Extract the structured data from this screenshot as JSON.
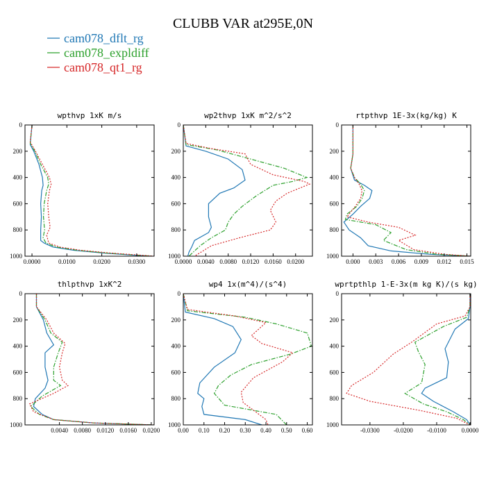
{
  "figure_title": "CLUBB VAR at295E,0N",
  "legend": [
    {
      "label": "cam078_dflt_rg",
      "color": "#1f77b4",
      "dash": "solid"
    },
    {
      "label": "cam078_expldiff",
      "color": "#2ca02c",
      "dash": "dashdot"
    },
    {
      "label": "cam078_qt1_rg",
      "color": "#d62728",
      "dash": "dotted"
    }
  ],
  "chart_data": [
    {
      "type": "line",
      "title": "wpthvp   1xK m/s",
      "xlim": [
        -0.002,
        0.035
      ],
      "ylim": [
        1000,
        0
      ],
      "xticks": [
        0,
        0.01,
        0.02,
        0.03
      ],
      "xticklabels": [
        "0.0000",
        "0.0100",
        "0.0200",
        "0.0300"
      ],
      "yticks": [
        0,
        200,
        400,
        600,
        800,
        1000
      ],
      "yticklabels": [
        "0",
        "200",
        "400",
        "600",
        "800",
        "1000"
      ],
      "series": [
        {
          "name": "cam078_dflt_rg",
          "x": [
            0.0,
            -0.0005,
            0.0005,
            0.002,
            0.003,
            0.0032,
            0.0028,
            0.0025,
            0.0027,
            0.0025,
            0.0025,
            0.0035,
            0.006,
            0.012,
            0.02,
            0.028,
            0.034
          ],
          "y": [
            0,
            150,
            200,
            300,
            400,
            460,
            500,
            600,
            700,
            800,
            880,
            900,
            930,
            955,
            975,
            990,
            1000
          ]
        },
        {
          "name": "cam078_expldiff",
          "x": [
            0.0,
            -0.0005,
            0.0008,
            0.0025,
            0.0045,
            0.0048,
            0.0042,
            0.0035,
            0.0033,
            0.0036,
            0.0032,
            0.004,
            0.007,
            0.013,
            0.021,
            0.029,
            0.0345
          ],
          "y": [
            0,
            140,
            200,
            300,
            400,
            450,
            500,
            600,
            700,
            800,
            860,
            900,
            930,
            955,
            975,
            990,
            1000
          ]
        },
        {
          "name": "cam078_qt1_rg",
          "x": [
            0.0,
            -0.0005,
            0.001,
            0.003,
            0.005,
            0.0055,
            0.005,
            0.0045,
            0.0048,
            0.0052,
            0.0042,
            0.0048,
            0.008,
            0.014,
            0.022,
            0.03,
            0.035
          ],
          "y": [
            0,
            130,
            200,
            300,
            400,
            450,
            500,
            600,
            700,
            780,
            840,
            900,
            930,
            955,
            975,
            990,
            1000
          ]
        }
      ]
    },
    {
      "type": "line",
      "title": "wp2thvp   1xK m^2/s^2",
      "xlim": [
        0,
        0.023
      ],
      "ylim": [
        1000,
        0
      ],
      "xticks": [
        0,
        0.004,
        0.008,
        0.012,
        0.016,
        0.02
      ],
      "xticklabels": [
        "0.0000",
        "0.0040",
        "0.0080",
        "0.0120",
        "0.0160",
        "0.0200"
      ],
      "yticks": [
        0,
        200,
        400,
        600,
        800,
        1000
      ],
      "yticklabels": [
        "0",
        "200",
        "400",
        "600",
        "800",
        "1000"
      ],
      "series": [
        {
          "name": "cam078_dflt_rg",
          "x": [
            0.0,
            0.0005,
            0.004,
            0.008,
            0.0105,
            0.011,
            0.009,
            0.0065,
            0.0045,
            0.0045,
            0.005,
            0.0045,
            0.002,
            0.0015,
            0.001,
            0.0008
          ],
          "y": [
            0,
            160,
            200,
            260,
            340,
            420,
            480,
            520,
            600,
            700,
            780,
            820,
            880,
            930,
            970,
            1000
          ]
        },
        {
          "name": "cam078_expldiff",
          "x": [
            0.0,
            0.0005,
            0.006,
            0.012,
            0.018,
            0.022,
            0.0195,
            0.016,
            0.013,
            0.0105,
            0.009,
            0.008,
            0.0075,
            0.005,
            0.003,
            0.001
          ],
          "y": [
            0,
            150,
            190,
            260,
            330,
            400,
            430,
            460,
            540,
            620,
            680,
            740,
            800,
            860,
            920,
            1000
          ]
        },
        {
          "name": "cam078_qt1_rg",
          "x": [
            0.0,
            0.0005,
            0.005,
            0.011,
            0.012,
            0.016,
            0.0215,
            0.0225,
            0.0185,
            0.0165,
            0.0155,
            0.0165,
            0.0155,
            0.01,
            0.005,
            0.002
          ],
          "y": [
            0,
            140,
            180,
            220,
            300,
            380,
            430,
            450,
            520,
            580,
            650,
            740,
            800,
            860,
            920,
            1000
          ]
        }
      ]
    },
    {
      "type": "line",
      "title": "rtpthvp   1E-3x(kg/kg) K",
      "xlim": [
        -0.0015,
        0.0155
      ],
      "ylim": [
        1000,
        0
      ],
      "xticks": [
        0,
        0.003,
        0.006,
        0.009,
        0.012,
        0.015
      ],
      "xticklabels": [
        "0.000",
        "0.003",
        "0.006",
        "0.009",
        "0.012",
        "0.015"
      ],
      "yticks": [
        0,
        200,
        400,
        600,
        800,
        1000
      ],
      "yticklabels": [
        "0",
        "200",
        "400",
        "600",
        "800",
        "1000"
      ],
      "series": [
        {
          "name": "cam078_dflt_rg",
          "x": [
            0.0,
            0.0,
            -0.0003,
            0.0002,
            0.0015,
            0.0025,
            0.0022,
            0.001,
            0.0,
            -0.0012,
            -0.0005,
            0.001,
            0.002,
            0.005,
            0.01,
            0.0155
          ],
          "y": [
            0,
            220,
            330,
            420,
            460,
            500,
            560,
            620,
            680,
            740,
            800,
            860,
            920,
            960,
            985,
            1000
          ]
        },
        {
          "name": "cam078_expldiff",
          "x": [
            0.0,
            0.0,
            -0.0003,
            0.0002,
            0.001,
            0.0015,
            0.0012,
            0.0005,
            -0.0008,
            -0.001,
            0.003,
            0.005,
            0.004,
            0.007,
            0.011,
            0.0155
          ],
          "y": [
            0,
            220,
            330,
            400,
            450,
            500,
            560,
            620,
            680,
            720,
            760,
            820,
            880,
            950,
            985,
            1000
          ]
        },
        {
          "name": "cam078_qt1_rg",
          "x": [
            0.0,
            0.0,
            -0.0003,
            0.0002,
            0.0008,
            0.0012,
            0.001,
            0.0003,
            -0.0008,
            0.002,
            0.006,
            0.0082,
            0.006,
            0.008,
            0.012,
            0.0155
          ],
          "y": [
            0,
            220,
            330,
            400,
            450,
            500,
            560,
            620,
            700,
            740,
            780,
            840,
            880,
            950,
            985,
            1000
          ]
        }
      ]
    },
    {
      "type": "line",
      "title": "thlpthvp   1xK^2",
      "xlim": [
        -0.002,
        0.0205
      ],
      "ylim": [
        1000,
        0
      ],
      "xticks": [
        0.004,
        0.008,
        0.012,
        0.016,
        0.02
      ],
      "xticklabels": [
        "0.0040",
        "0.0080",
        "0.0120",
        "0.0160",
        "0.0200"
      ],
      "yticks": [
        0,
        200,
        400,
        600,
        800,
        1000
      ],
      "yticklabels": [
        "0",
        "200",
        "400",
        "600",
        "800",
        "1000"
      ],
      "series": [
        {
          "name": "cam078_dflt_rg",
          "x": [
            0.0,
            0.0,
            0.0012,
            0.0018,
            0.003,
            0.0015,
            0.0015,
            0.002,
            0.0015,
            -0.0002,
            -0.0005,
            0.001,
            0.003,
            0.01,
            0.02
          ],
          "y": [
            0,
            100,
            200,
            300,
            390,
            450,
            560,
            660,
            720,
            800,
            860,
            920,
            960,
            985,
            1000
          ]
        },
        {
          "name": "cam078_expldiff",
          "x": [
            0.0,
            0.0,
            0.0015,
            0.0025,
            0.0045,
            0.0038,
            0.003,
            0.003,
            0.0042,
            0.001,
            -0.001,
            0.0005,
            0.003,
            0.01,
            0.0205
          ],
          "y": [
            0,
            100,
            200,
            300,
            370,
            450,
            560,
            660,
            700,
            780,
            860,
            920,
            960,
            985,
            1000
          ]
        },
        {
          "name": "cam078_qt1_rg",
          "x": [
            0.0,
            0.0,
            0.0018,
            0.003,
            0.005,
            0.0045,
            0.004,
            0.0045,
            0.0055,
            0.003,
            -0.0012,
            -0.0005,
            0.003,
            0.01,
            0.0205
          ],
          "y": [
            0,
            100,
            200,
            300,
            380,
            450,
            560,
            660,
            700,
            760,
            840,
            900,
            960,
            985,
            1000
          ]
        }
      ]
    },
    {
      "type": "line",
      "title": "wp4   1x(m^4)/(s^4)",
      "xlim": [
        0,
        0.625
      ],
      "ylim": [
        1000,
        0
      ],
      "xticks": [
        0,
        0.1,
        0.2,
        0.3,
        0.4,
        0.5,
        0.6
      ],
      "xticklabels": [
        "0.00",
        "0.10",
        "0.20",
        "0.30",
        "0.40",
        "0.50",
        "0.60"
      ],
      "yticks": [
        0,
        200,
        400,
        600,
        800,
        1000
      ],
      "yticklabels": [
        "0",
        "200",
        "400",
        "600",
        "800",
        "1000"
      ],
      "series": [
        {
          "name": "cam078_dflt_rg",
          "x": [
            0.0,
            0.01,
            0.15,
            0.24,
            0.28,
            0.25,
            0.15,
            0.08,
            0.07,
            0.1,
            0.09,
            0.1,
            0.3,
            0.38
          ],
          "y": [
            0,
            140,
            190,
            250,
            350,
            450,
            560,
            680,
            760,
            800,
            860,
            920,
            960,
            1000
          ]
        },
        {
          "name": "cam078_expldiff",
          "x": [
            0.0,
            0.02,
            0.3,
            0.45,
            0.6,
            0.62,
            0.52,
            0.33,
            0.23,
            0.17,
            0.15,
            0.2,
            0.45,
            0.5
          ],
          "y": [
            0,
            130,
            180,
            230,
            300,
            400,
            460,
            540,
            620,
            700,
            760,
            850,
            920,
            1000
          ]
        },
        {
          "name": "cam078_qt1_rg",
          "x": [
            0.0,
            0.02,
            0.25,
            0.4,
            0.33,
            0.38,
            0.53,
            0.48,
            0.34,
            0.28,
            0.29,
            0.35,
            0.4,
            0.41
          ],
          "y": [
            0,
            120,
            170,
            220,
            320,
            380,
            450,
            520,
            640,
            750,
            830,
            900,
            960,
            1000
          ]
        }
      ]
    },
    {
      "type": "line",
      "title": "wprtpthlp   1-E-3x(m kg K)/(s kg)",
      "xlim": [
        -0.0385,
        0.0002
      ],
      "ylim": [
        1000,
        0
      ],
      "xticks": [
        -0.03,
        -0.02,
        -0.01,
        0.0
      ],
      "xticklabels": [
        "-0.0300",
        "-0.0200",
        "-0.0100",
        "0.0000"
      ],
      "yticks": [
        0,
        200,
        400,
        600,
        800,
        1000
      ],
      "yticklabels": [
        "0",
        "200",
        "400",
        "600",
        "800",
        "1000"
      ],
      "series": [
        {
          "name": "cam078_dflt_rg",
          "x": [
            0.0,
            0.0,
            -0.0005,
            -0.0045,
            -0.0075,
            -0.0065,
            -0.007,
            -0.0135,
            -0.0145,
            -0.011,
            -0.005,
            -0.001,
            0.0
          ],
          "y": [
            0,
            100,
            190,
            270,
            420,
            520,
            640,
            720,
            760,
            820,
            900,
            960,
            1000
          ]
        },
        {
          "name": "cam078_expldiff",
          "x": [
            0.0,
            0.0,
            -0.001,
            -0.008,
            -0.0165,
            -0.0155,
            -0.0135,
            -0.0145,
            -0.0195,
            -0.014,
            -0.007,
            -0.002,
            0.0
          ],
          "y": [
            0,
            100,
            180,
            250,
            370,
            440,
            540,
            680,
            760,
            840,
            900,
            960,
            1000
          ]
        },
        {
          "name": "cam078_qt1_rg",
          "x": [
            0.0,
            0.0,
            -0.0015,
            -0.01,
            -0.0175,
            -0.023,
            -0.029,
            -0.0355,
            -0.037,
            -0.03,
            -0.015,
            -0.004,
            0.0
          ],
          "y": [
            0,
            100,
            170,
            230,
            370,
            460,
            600,
            700,
            760,
            820,
            890,
            950,
            1000
          ]
        }
      ]
    }
  ]
}
